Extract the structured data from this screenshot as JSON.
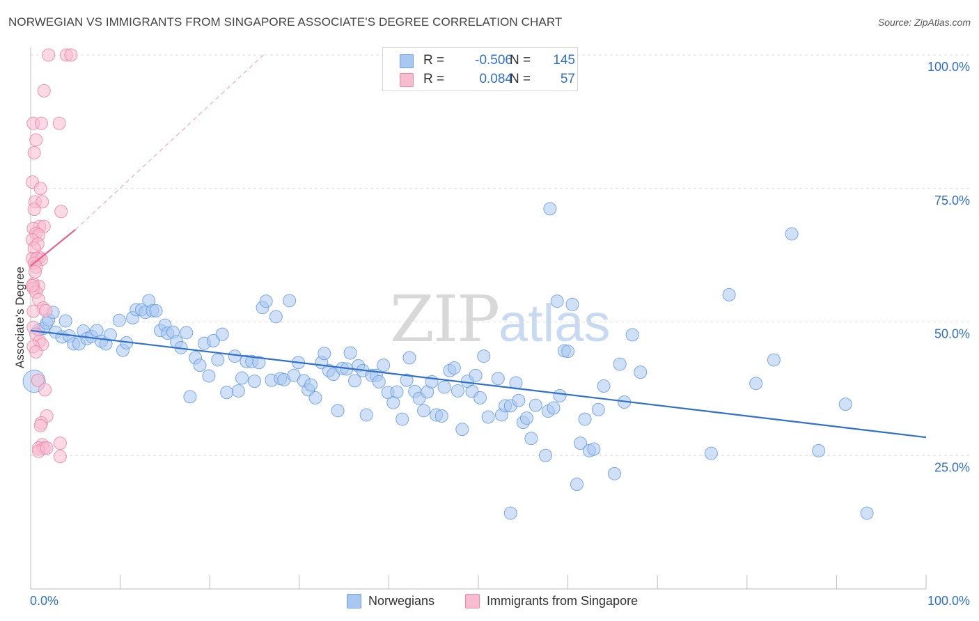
{
  "header": {
    "title": "NORWEGIAN VS IMMIGRANTS FROM SINGAPORE ASSOCIATE'S DEGREE CORRELATION CHART",
    "source": "Source: ZipAtlas.com"
  },
  "legend": {
    "r_label": "R =",
    "n_label": "N =",
    "series": [
      {
        "name": "Norwegians",
        "r": "-0.506",
        "n": "145",
        "color": "#a9c8f0",
        "edge": "#6d9fe0"
      },
      {
        "name": "Immigrants from Singapore",
        "r": "0.084",
        "n": "57",
        "color": "#f7bcd0",
        "edge": "#ee87a8"
      }
    ]
  },
  "watermark": {
    "zip": "ZIP",
    "atlas": "atlas"
  },
  "chart_data": {
    "type": "scatter",
    "title": "NORWEGIAN VS IMMIGRANTS FROM SINGAPORE ASSOCIATE'S DEGREE CORRELATION CHART",
    "xlabel": "",
    "ylabel": "Associate's Degree",
    "xlim": [
      0,
      100
    ],
    "ylim": [
      0,
      100
    ],
    "x_tick_labels": [
      {
        "value": 0,
        "label": "0.0%"
      },
      {
        "value": 100,
        "label": "100.0%"
      }
    ],
    "y_tick_labels": [
      {
        "value": 25,
        "label": "25.0%"
      },
      {
        "value": 50,
        "label": "50.0%"
      },
      {
        "value": 75,
        "label": "75.0%"
      },
      {
        "value": 100,
        "label": "100.0%"
      }
    ],
    "grid": "horizontal dashed",
    "series": [
      {
        "name": "Norwegians",
        "color": "#a9c8f0",
        "trend": {
          "x": [
            0,
            100
          ],
          "y": [
            48.4,
            28.4
          ],
          "color": "#2f6fce",
          "style": "solid"
        },
        "points": [
          [
            0.4,
            38.9
          ],
          [
            0.9,
            48.5
          ],
          [
            1.4,
            48.8
          ],
          [
            1.8,
            49.8
          ],
          [
            2.0,
            50.4
          ],
          [
            2.5,
            51.8
          ],
          [
            2.8,
            48.1
          ],
          [
            3.5,
            47.2
          ],
          [
            3.9,
            50.2
          ],
          [
            4.3,
            47.4
          ],
          [
            4.8,
            45.9
          ],
          [
            5.4,
            45.9
          ],
          [
            5.9,
            48.3
          ],
          [
            6.3,
            46.9
          ],
          [
            6.8,
            47.3
          ],
          [
            7.4,
            48.4
          ],
          [
            7.9,
            46.4
          ],
          [
            8.4,
            45.9
          ],
          [
            8.9,
            47.6
          ],
          [
            9.9,
            50.3
          ],
          [
            10.3,
            44.7
          ],
          [
            10.7,
            46.1
          ],
          [
            11.4,
            50.8
          ],
          [
            11.8,
            52.3
          ],
          [
            12.4,
            52.3
          ],
          [
            12.8,
            51.8
          ],
          [
            13.2,
            54.0
          ],
          [
            13.6,
            52.1
          ],
          [
            14.0,
            52.1
          ],
          [
            14.5,
            48.4
          ],
          [
            15.0,
            49.4
          ],
          [
            15.3,
            47.9
          ],
          [
            15.9,
            48.1
          ],
          [
            16.3,
            46.3
          ],
          [
            16.8,
            45.2
          ],
          [
            17.4,
            48.0
          ],
          [
            17.8,
            36.0
          ],
          [
            18.4,
            43.3
          ],
          [
            18.9,
            41.9
          ],
          [
            19.4,
            46.0
          ],
          [
            19.9,
            39.9
          ],
          [
            20.4,
            46.5
          ],
          [
            20.9,
            42.9
          ],
          [
            21.4,
            47.7
          ],
          [
            21.9,
            36.8
          ],
          [
            22.8,
            43.6
          ],
          [
            23.2,
            37.1
          ],
          [
            23.6,
            39.5
          ],
          [
            24.1,
            42.6
          ],
          [
            24.7,
            42.6
          ],
          [
            25.0,
            38.9
          ],
          [
            25.5,
            42.4
          ],
          [
            25.9,
            52.7
          ],
          [
            26.3,
            53.9
          ],
          [
            26.9,
            39.1
          ],
          [
            27.4,
            51.0
          ],
          [
            27.9,
            39.4
          ],
          [
            28.3,
            39.2
          ],
          [
            28.9,
            54.0
          ],
          [
            29.4,
            40.0
          ],
          [
            29.9,
            42.4
          ],
          [
            30.5,
            39.0
          ],
          [
            31.0,
            37.3
          ],
          [
            31.3,
            38.2
          ],
          [
            31.8,
            35.8
          ],
          [
            32.5,
            42.4
          ],
          [
            32.8,
            44.1
          ],
          [
            33.3,
            40.9
          ],
          [
            33.8,
            40.2
          ],
          [
            34.3,
            33.4
          ],
          [
            34.8,
            41.3
          ],
          [
            35.3,
            41.2
          ],
          [
            35.7,
            44.2
          ],
          [
            36.2,
            39.0
          ],
          [
            36.6,
            41.8
          ],
          [
            37.1,
            40.9
          ],
          [
            37.5,
            32.6
          ],
          [
            38.1,
            40.0
          ],
          [
            38.6,
            40.0
          ],
          [
            38.9,
            38.8
          ],
          [
            39.4,
            41.9
          ],
          [
            39.9,
            36.8
          ],
          [
            40.5,
            34.9
          ],
          [
            40.9,
            36.9
          ],
          [
            41.5,
            31.8
          ],
          [
            42.0,
            39.1
          ],
          [
            42.3,
            43.3
          ],
          [
            42.9,
            37.0
          ],
          [
            43.4,
            35.7
          ],
          [
            43.9,
            33.4
          ],
          [
            44.3,
            36.9
          ],
          [
            44.8,
            38.8
          ],
          [
            45.3,
            32.6
          ],
          [
            45.9,
            32.4
          ],
          [
            46.2,
            37.8
          ],
          [
            46.8,
            40.9
          ],
          [
            47.3,
            41.4
          ],
          [
            47.7,
            37.1
          ],
          [
            48.2,
            29.9
          ],
          [
            48.8,
            38.9
          ],
          [
            49.3,
            37.0
          ],
          [
            49.7,
            40.0
          ],
          [
            50.2,
            35.8
          ],
          [
            50.6,
            43.6
          ],
          [
            51.1,
            32.2
          ],
          [
            52.2,
            39.4
          ],
          [
            52.6,
            32.6
          ],
          [
            53.0,
            34.3
          ],
          [
            53.6,
            34.3
          ],
          [
            54.2,
            38.6
          ],
          [
            54.5,
            35.3
          ],
          [
            55.0,
            31.2
          ],
          [
            55.4,
            32.0
          ],
          [
            55.9,
            28.2
          ],
          [
            56.4,
            34.4
          ],
          [
            57.5,
            25.0
          ],
          [
            57.8,
            33.3
          ],
          [
            58.4,
            33.9
          ],
          [
            58.8,
            53.9
          ],
          [
            59.1,
            36.2
          ],
          [
            59.6,
            44.6
          ],
          [
            60.0,
            44.5
          ],
          [
            60.5,
            53.3
          ],
          [
            61.0,
            19.6
          ],
          [
            61.4,
            27.3
          ],
          [
            61.9,
            31.8
          ],
          [
            62.4,
            25.9
          ],
          [
            62.9,
            26.2
          ],
          [
            63.4,
            33.6
          ],
          [
            64.0,
            38.0
          ],
          [
            65.2,
            21.6
          ],
          [
            65.8,
            42.1
          ],
          [
            66.3,
            35.0
          ],
          [
            67.2,
            47.6
          ],
          [
            68.1,
            40.6
          ],
          [
            76.0,
            25.4
          ],
          [
            78.0,
            55.1
          ],
          [
            81.0,
            38.5
          ],
          [
            83.0,
            42.9
          ],
          [
            85.0,
            66.5
          ],
          [
            88.0,
            25.9
          ],
          [
            91.0,
            34.6
          ],
          [
            93.4,
            14.2
          ],
          [
            53.6,
            14.2
          ],
          [
            58.0,
            71.2
          ]
        ]
      },
      {
        "name": "Immigrants from Singapore",
        "color": "#f7bcd0",
        "trend": {
          "x": [
            0,
            5
          ],
          "y": [
            60.5,
            67.3
          ],
          "dashed_to": [
            26,
            100
          ],
          "color": "#e85d8a",
          "style": "solid+dashed"
        },
        "points": [
          [
            2.0,
            100
          ],
          [
            4.0,
            100
          ],
          [
            4.5,
            100
          ],
          [
            1.5,
            93.3
          ],
          [
            0.3,
            87.2
          ],
          [
            1.2,
            87.2
          ],
          [
            3.2,
            87.2
          ],
          [
            0.6,
            84.1
          ],
          [
            0.4,
            81.7
          ],
          [
            0.2,
            76.2
          ],
          [
            1.1,
            75.0
          ],
          [
            0.5,
            72.5
          ],
          [
            1.3,
            72.5
          ],
          [
            0.4,
            71.1
          ],
          [
            3.4,
            70.7
          ],
          [
            1.0,
            67.9
          ],
          [
            0.3,
            67.5
          ],
          [
            1.5,
            67.9
          ],
          [
            0.6,
            66.6
          ],
          [
            0.9,
            66.3
          ],
          [
            0.2,
            65.4
          ],
          [
            0.8,
            64.6
          ],
          [
            0.4,
            63.8
          ],
          [
            1.0,
            62.1
          ],
          [
            0.2,
            61.9
          ],
          [
            0.7,
            61.9
          ],
          [
            1.2,
            61.7
          ],
          [
            0.4,
            61.0
          ],
          [
            0.6,
            60.3
          ],
          [
            0.3,
            57.1
          ],
          [
            0.9,
            56.7
          ],
          [
            0.3,
            56.3
          ],
          [
            0.6,
            55.6
          ],
          [
            0.9,
            54.2
          ],
          [
            1.4,
            52.6
          ],
          [
            1.7,
            52.1
          ],
          [
            0.3,
            52.0
          ],
          [
            0.3,
            49.0
          ],
          [
            0.6,
            47.7
          ],
          [
            1.0,
            46.4
          ],
          [
            1.3,
            45.8
          ],
          [
            0.3,
            45.4
          ],
          [
            0.6,
            44.4
          ],
          [
            0.8,
            39.1
          ],
          [
            1.6,
            37.3
          ],
          [
            1.8,
            32.4
          ],
          [
            1.2,
            31.1
          ],
          [
            1.1,
            30.6
          ],
          [
            1.3,
            27.0
          ],
          [
            0.9,
            26.4
          ],
          [
            1.5,
            26.4
          ],
          [
            0.9,
            25.8
          ],
          [
            1.8,
            26.4
          ],
          [
            3.3,
            27.3
          ],
          [
            3.3,
            24.8
          ],
          [
            0.5,
            59.4
          ],
          [
            0.2,
            56.8
          ]
        ]
      }
    ]
  }
}
